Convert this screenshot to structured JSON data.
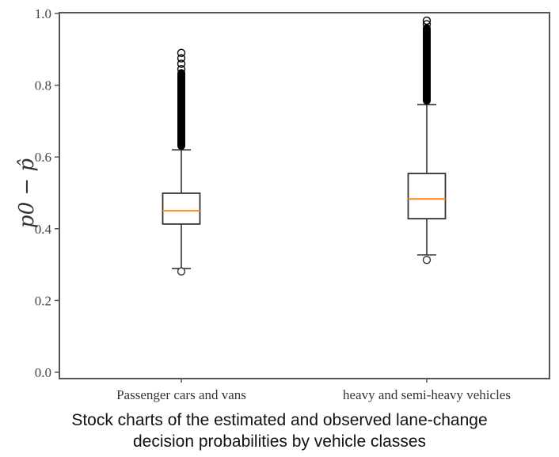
{
  "caption": {
    "line1": "Stock charts of the estimated and observed lane-change",
    "line2": "decision probabilities by vehicle classes"
  },
  "colors": {
    "axis": "#555555",
    "box": "#333333",
    "median": "#ff8c1a",
    "outlier": "#000000"
  },
  "chart_data": {
    "type": "boxplot",
    "title": "",
    "xlabel": "",
    "ylabel": "p0 − p̂",
    "ylim": [
      0.0,
      1.0
    ],
    "yticks": [
      "0.0",
      "0.2",
      "0.4",
      "0.6",
      "0.8",
      "1.0"
    ],
    "grid": false,
    "legend": null,
    "categories": [
      "Passenger cars and vans",
      "heavy and semi-heavy vehicles"
    ],
    "series": [
      {
        "name": "Passenger cars and vans",
        "whisker_low": 0.289,
        "q1": 0.413,
        "median": 0.45,
        "q3": 0.499,
        "whisker_high": 0.62,
        "outliers_low": [
          0.281
        ],
        "outliers_high_range": [
          0.62,
          0.89
        ],
        "outliers_high_sparse": [
          0.845,
          0.86,
          0.875,
          0.89
        ]
      },
      {
        "name": "heavy and semi-heavy vehicles",
        "whisker_low": 0.327,
        "q1": 0.428,
        "median": 0.483,
        "q3": 0.554,
        "whisker_high": 0.746,
        "outliers_low": [
          0.313
        ],
        "outliers_high_range": [
          0.746,
          0.98
        ],
        "outliers_high_sparse": [
          0.97,
          0.98
        ]
      }
    ]
  }
}
